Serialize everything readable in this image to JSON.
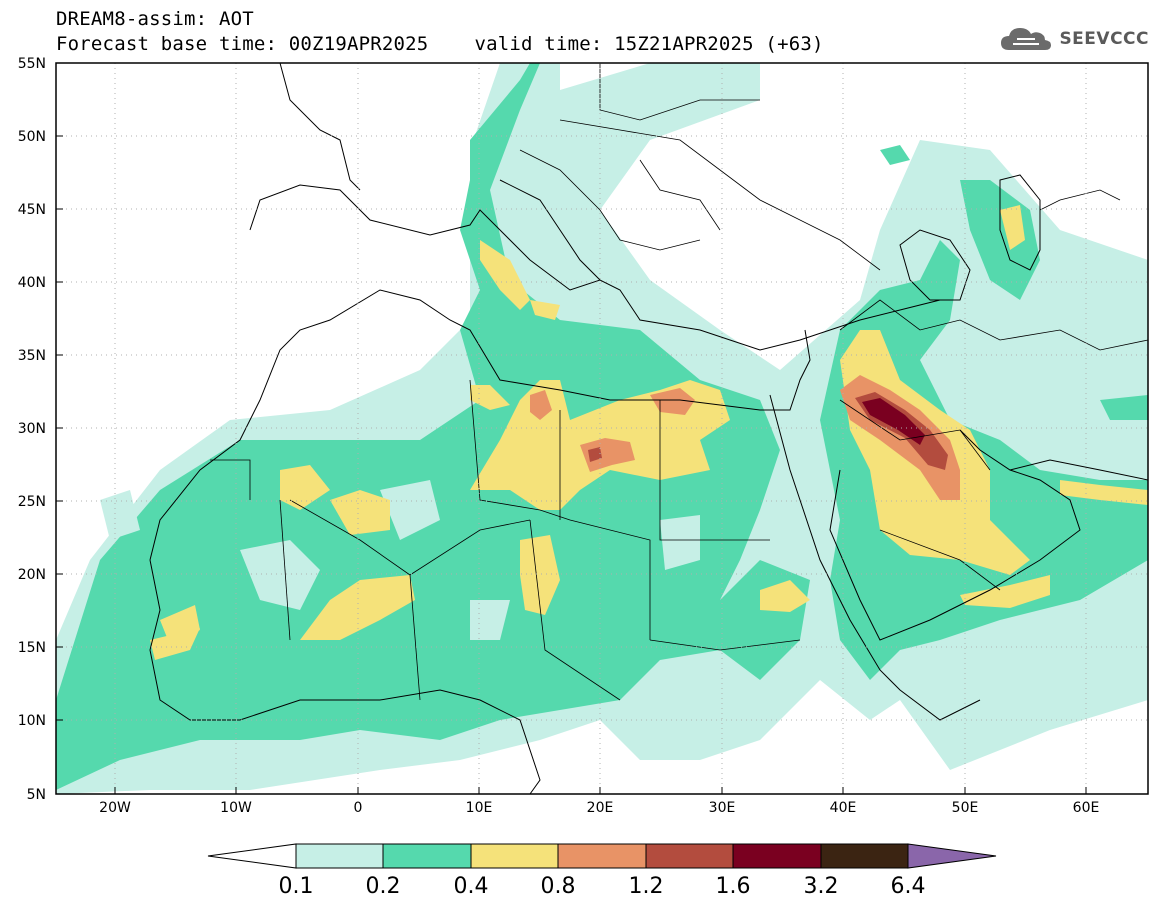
{
  "header": {
    "line1": "DREAM8-assim: AOT",
    "base_time": "Forecast base time: 00Z19APR2025",
    "valid_time": "valid time: 15Z21APR2025 (+63)"
  },
  "logo": {
    "icon": "cloud-icon",
    "text": "SEEVCCC"
  },
  "map": {
    "lon_ticks": [
      "20W",
      "10W",
      "0",
      "10E",
      "20E",
      "30E",
      "40E",
      "50E",
      "60E"
    ],
    "lat_ticks": [
      "55N",
      "50N",
      "45N",
      "40N",
      "35N",
      "30N",
      "25N",
      "20N",
      "15N",
      "10N",
      "5N"
    ]
  },
  "colorbar": {
    "colors": [
      "#ffffff",
      "#c6efe6",
      "#55d9ad",
      "#f5e27a",
      "#e89366",
      "#b34c3e",
      "#7a0020",
      "#3b2412",
      "#8a66aa"
    ],
    "labels": [
      "0.1",
      "0.2",
      "0.4",
      "0.8",
      "1.2",
      "1.6",
      "3.2",
      "6.4"
    ]
  },
  "palette": {
    "ocean_land_bg": "#ffffff",
    "c1": "#c6efe6",
    "c2": "#55d9ad",
    "c3": "#f5e27a",
    "c4": "#e89366",
    "c5": "#b34c3e",
    "c6": "#7a0020"
  }
}
